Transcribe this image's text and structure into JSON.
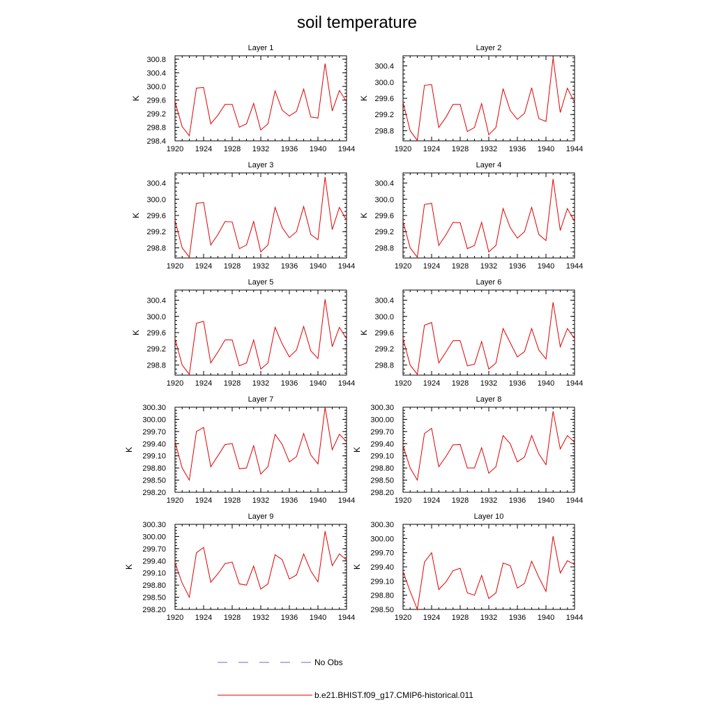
{
  "figure": {
    "title": "soil temperature",
    "legend": {
      "placement": "bottom-center",
      "entries": [
        {
          "label": "No Obs",
          "color": "#6a6ad0",
          "style": "dashed"
        },
        {
          "label": "b.e21.BHIST.f09_g17.CMIP6-historical.011",
          "color": "#e00000",
          "style": "solid"
        }
      ]
    }
  },
  "chart_data": [
    {
      "type": "line",
      "title": "Layer 1",
      "ylabel": "K",
      "xlim": [
        1920,
        1944
      ],
      "ylim": [
        298.4,
        300.9
      ],
      "xticks": [
        "1920",
        "1924",
        "1928",
        "1932",
        "1936",
        "1940",
        "1944"
      ],
      "yticks": [
        "298.4",
        "298.8",
        "299.2",
        "299.6",
        "300.0",
        "300.4",
        "300.8"
      ],
      "series": [
        {
          "name": "b.e21.BHIST.f09_g17.CMIP6-historical.011",
          "color": "#e00000",
          "x": [
            1920,
            1921,
            1922,
            1923,
            1924,
            1925,
            1926,
            1927,
            1928,
            1929,
            1930,
            1931,
            1932,
            1933,
            1934,
            1935,
            1936,
            1937,
            1938,
            1939,
            1940,
            1941,
            1942,
            1943,
            1944
          ],
          "values": [
            299.55,
            298.82,
            298.55,
            299.95,
            299.97,
            298.9,
            299.15,
            299.47,
            299.47,
            298.8,
            298.9,
            299.5,
            298.72,
            298.9,
            299.87,
            299.3,
            299.13,
            299.27,
            299.92,
            299.1,
            299.07,
            300.67,
            299.28,
            299.88,
            299.55
          ]
        }
      ]
    },
    {
      "type": "line",
      "title": "Layer 2",
      "ylabel": "K",
      "xlim": [
        1920,
        1944
      ],
      "ylim": [
        298.55,
        300.65
      ],
      "xticks": [
        "1920",
        "1924",
        "1928",
        "1932",
        "1936",
        "1940",
        "1944"
      ],
      "yticks": [
        "298.8",
        "299.2",
        "299.6",
        "300.0",
        "300.4"
      ],
      "series": [
        {
          "name": "b.e21.BHIST.f09_g17.CMIP6-historical.011",
          "color": "#e00000",
          "x": [
            1920,
            1921,
            1922,
            1923,
            1924,
            1925,
            1926,
            1927,
            1928,
            1929,
            1930,
            1931,
            1932,
            1933,
            1934,
            1935,
            1936,
            1937,
            1938,
            1939,
            1940,
            1941,
            1942,
            1943,
            1944
          ],
          "values": [
            299.5,
            298.8,
            298.56,
            299.92,
            299.94,
            298.88,
            299.13,
            299.45,
            299.45,
            298.78,
            298.88,
            299.47,
            298.7,
            298.88,
            299.84,
            299.3,
            299.08,
            299.23,
            299.86,
            299.1,
            299.03,
            300.6,
            299.25,
            299.85,
            299.5
          ]
        }
      ]
    },
    {
      "type": "line",
      "title": "Layer 3",
      "ylabel": "K",
      "xlim": [
        1920,
        1944
      ],
      "ylim": [
        298.55,
        300.65
      ],
      "xticks": [
        "1920",
        "1924",
        "1928",
        "1932",
        "1936",
        "1940",
        "1944"
      ],
      "yticks": [
        "298.8",
        "299.2",
        "299.6",
        "300.0",
        "300.4"
      ],
      "series": [
        {
          "name": "b.e21.BHIST.f09_g17.CMIP6-historical.011",
          "color": "#e00000",
          "x": [
            1920,
            1921,
            1922,
            1923,
            1924,
            1925,
            1926,
            1927,
            1928,
            1929,
            1930,
            1931,
            1932,
            1933,
            1934,
            1935,
            1936,
            1937,
            1938,
            1939,
            1940,
            1941,
            1942,
            1943,
            1944
          ],
          "values": [
            299.48,
            298.8,
            298.57,
            299.9,
            299.92,
            298.87,
            299.13,
            299.45,
            299.44,
            298.78,
            298.87,
            299.45,
            298.7,
            298.87,
            299.8,
            299.3,
            299.05,
            299.2,
            299.82,
            299.13,
            299.0,
            300.55,
            299.25,
            299.8,
            299.48
          ]
        }
      ]
    },
    {
      "type": "line",
      "title": "Layer 4",
      "ylabel": "K",
      "xlim": [
        1920,
        1944
      ],
      "ylim": [
        298.55,
        300.65
      ],
      "xticks": [
        "1920",
        "1924",
        "1928",
        "1932",
        "1936",
        "1940",
        "1944"
      ],
      "yticks": [
        "298.8",
        "299.2",
        "299.6",
        "300.0",
        "300.4"
      ],
      "series": [
        {
          "name": "b.e21.BHIST.f09_g17.CMIP6-historical.011",
          "color": "#e00000",
          "x": [
            1920,
            1921,
            1922,
            1923,
            1924,
            1925,
            1926,
            1927,
            1928,
            1929,
            1930,
            1931,
            1932,
            1933,
            1934,
            1935,
            1936,
            1937,
            1938,
            1939,
            1940,
            1941,
            1942,
            1943,
            1944
          ],
          "values": [
            299.45,
            298.8,
            298.57,
            299.87,
            299.9,
            298.86,
            299.12,
            299.43,
            299.42,
            298.78,
            298.86,
            299.43,
            298.7,
            298.86,
            299.77,
            299.3,
            299.04,
            299.2,
            299.8,
            299.13,
            298.98,
            300.5,
            299.23,
            299.77,
            299.45
          ]
        }
      ]
    },
    {
      "type": "line",
      "title": "Layer 5",
      "ylabel": "K",
      "xlim": [
        1920,
        1944
      ],
      "ylim": [
        298.55,
        300.65
      ],
      "xticks": [
        "1920",
        "1924",
        "1928",
        "1932",
        "1936",
        "1940",
        "1944"
      ],
      "yticks": [
        "298.8",
        "299.2",
        "299.6",
        "300.0",
        "300.4"
      ],
      "series": [
        {
          "name": "b.e21.BHIST.f09_g17.CMIP6-historical.011",
          "color": "#e00000",
          "x": [
            1920,
            1921,
            1922,
            1923,
            1924,
            1925,
            1926,
            1927,
            1928,
            1929,
            1930,
            1931,
            1932,
            1933,
            1934,
            1935,
            1936,
            1937,
            1938,
            1939,
            1940,
            1941,
            1942,
            1943,
            1944
          ],
          "values": [
            299.45,
            298.8,
            298.57,
            299.83,
            299.88,
            298.85,
            299.12,
            299.42,
            299.42,
            298.78,
            298.85,
            299.42,
            298.7,
            298.85,
            299.73,
            299.32,
            299.0,
            299.17,
            299.75,
            299.15,
            298.96,
            300.42,
            299.25,
            299.73,
            299.45
          ]
        }
      ]
    },
    {
      "type": "line",
      "title": "Layer 6",
      "ylabel": "K",
      "xlim": [
        1920,
        1944
      ],
      "ylim": [
        298.55,
        300.65
      ],
      "xticks": [
        "1920",
        "1924",
        "1928",
        "1932",
        "1936",
        "1940",
        "1944"
      ],
      "yticks": [
        "298.8",
        "299.2",
        "299.6",
        "300.0",
        "300.4"
      ],
      "series": [
        {
          "name": "b.e21.BHIST.f09_g17.CMIP6-historical.011",
          "color": "#e00000",
          "x": [
            1920,
            1921,
            1922,
            1923,
            1924,
            1925,
            1926,
            1927,
            1928,
            1929,
            1930,
            1931,
            1932,
            1933,
            1934,
            1935,
            1936,
            1937,
            1938,
            1939,
            1940,
            1941,
            1942,
            1943,
            1944
          ],
          "values": [
            299.45,
            298.8,
            298.57,
            299.78,
            299.85,
            298.85,
            299.12,
            299.4,
            299.4,
            298.78,
            298.82,
            299.38,
            298.7,
            298.85,
            299.7,
            299.35,
            299.0,
            299.13,
            299.7,
            299.17,
            298.95,
            300.35,
            299.25,
            299.7,
            299.45
          ]
        }
      ]
    },
    {
      "type": "line",
      "title": "Layer 7",
      "ylabel": "K",
      "xlim": [
        1920,
        1944
      ],
      "ylim": [
        298.2,
        300.3
      ],
      "xticks": [
        "1920",
        "1924",
        "1928",
        "1932",
        "1936",
        "1940",
        "1944"
      ],
      "yticks": [
        "298.20",
        "298.50",
        "298.80",
        "299.10",
        "299.40",
        "299.70",
        "300.00",
        "300.30"
      ],
      "series": [
        {
          "name": "b.e21.BHIST.f09_g17.CMIP6-historical.011",
          "color": "#e00000",
          "x": [
            1920,
            1921,
            1922,
            1923,
            1924,
            1925,
            1926,
            1927,
            1928,
            1929,
            1930,
            1931,
            1932,
            1933,
            1934,
            1935,
            1936,
            1937,
            1938,
            1939,
            1940,
            1941,
            1942,
            1943,
            1944
          ],
          "values": [
            299.45,
            298.8,
            298.5,
            299.7,
            299.8,
            298.83,
            299.1,
            299.38,
            299.4,
            298.78,
            298.8,
            299.35,
            298.65,
            298.83,
            299.63,
            299.38,
            298.95,
            299.08,
            299.65,
            299.12,
            298.9,
            300.3,
            299.25,
            299.63,
            299.45
          ]
        }
      ]
    },
    {
      "type": "line",
      "title": "Layer 8",
      "ylabel": "K",
      "xlim": [
        1920,
        1944
      ],
      "ylim": [
        298.2,
        300.3
      ],
      "xticks": [
        "1920",
        "1924",
        "1928",
        "1932",
        "1936",
        "1940",
        "1944"
      ],
      "yticks": [
        "298.20",
        "298.50",
        "298.80",
        "299.10",
        "299.40",
        "299.70",
        "300.00",
        "300.30"
      ],
      "series": [
        {
          "name": "b.e21.BHIST.f09_g17.CMIP6-historical.011",
          "color": "#e00000",
          "x": [
            1920,
            1921,
            1922,
            1923,
            1924,
            1925,
            1926,
            1927,
            1928,
            1929,
            1930,
            1931,
            1932,
            1933,
            1934,
            1935,
            1936,
            1937,
            1938,
            1939,
            1940,
            1941,
            1942,
            1943,
            1944
          ],
          "values": [
            299.35,
            298.8,
            298.5,
            299.65,
            299.78,
            298.83,
            299.08,
            299.37,
            299.38,
            298.8,
            298.8,
            299.3,
            298.67,
            298.83,
            299.6,
            299.4,
            298.95,
            299.07,
            299.6,
            299.15,
            298.88,
            300.2,
            299.27,
            299.6,
            299.43
          ]
        }
      ]
    },
    {
      "type": "line",
      "title": "Layer 9",
      "ylabel": "K",
      "xlim": [
        1920,
        1944
      ],
      "ylim": [
        298.2,
        300.3
      ],
      "xticks": [
        "1920",
        "1924",
        "1928",
        "1932",
        "1936",
        "1940",
        "1944"
      ],
      "yticks": [
        "298.20",
        "298.50",
        "298.80",
        "299.10",
        "299.40",
        "299.70",
        "300.00",
        "300.30"
      ],
      "series": [
        {
          "name": "b.e21.BHIST.f09_g17.CMIP6-historical.011",
          "color": "#e00000",
          "x": [
            1920,
            1921,
            1922,
            1923,
            1924,
            1925,
            1926,
            1927,
            1928,
            1929,
            1930,
            1931,
            1932,
            1933,
            1934,
            1935,
            1936,
            1937,
            1938,
            1939,
            1940,
            1941,
            1942,
            1943,
            1944
          ],
          "values": [
            299.35,
            298.85,
            298.5,
            299.6,
            299.73,
            298.87,
            299.08,
            299.33,
            299.37,
            298.83,
            298.8,
            299.27,
            298.7,
            298.83,
            299.55,
            299.43,
            298.95,
            299.05,
            299.57,
            299.15,
            298.88,
            300.13,
            299.28,
            299.57,
            299.42
          ]
        }
      ]
    },
    {
      "type": "line",
      "title": "Layer 10",
      "ylabel": "K",
      "xlim": [
        1920,
        1944
      ],
      "ylim": [
        298.5,
        300.3
      ],
      "xticks": [
        "1920",
        "1924",
        "1928",
        "1932",
        "1936",
        "1940",
        "1944"
      ],
      "yticks": [
        "298.50",
        "298.80",
        "299.10",
        "299.40",
        "299.70",
        "300.00",
        "300.30"
      ],
      "series": [
        {
          "name": "b.e21.BHIST.f09_g17.CMIP6-historical.011",
          "color": "#e00000",
          "x": [
            1920,
            1921,
            1922,
            1923,
            1924,
            1925,
            1926,
            1927,
            1928,
            1929,
            1930,
            1931,
            1932,
            1933,
            1934,
            1935,
            1936,
            1937,
            1938,
            1939,
            1940,
            1941,
            1942,
            1943,
            1944
          ],
          "values": [
            299.3,
            298.88,
            298.5,
            299.5,
            299.7,
            298.92,
            299.08,
            299.32,
            299.37,
            298.85,
            298.8,
            299.22,
            298.73,
            298.85,
            299.48,
            299.43,
            298.95,
            299.05,
            299.52,
            299.18,
            298.88,
            300.05,
            299.27,
            299.53,
            299.45
          ]
        }
      ]
    }
  ]
}
